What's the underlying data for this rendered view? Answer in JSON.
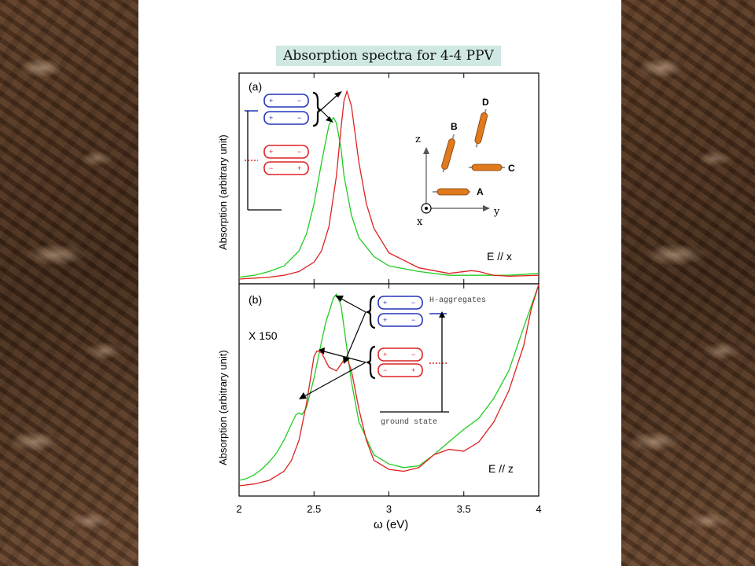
{
  "slide": {
    "title": "Absorption spectra for 4-4 PPV"
  },
  "chart_data": [
    {
      "type": "line",
      "panel_label": "(a)",
      "ylabel": "Absorption (arbitrary unit)",
      "field_label": "E // x",
      "xlim": [
        2,
        4
      ],
      "series": [
        {
          "color": "#22cc22",
          "x": [
            2.0,
            2.1,
            2.2,
            2.3,
            2.4,
            2.45,
            2.5,
            2.55,
            2.6,
            2.63,
            2.65,
            2.68,
            2.7,
            2.75,
            2.8,
            2.9,
            3.0,
            3.2,
            3.4,
            3.6,
            3.8,
            4.0
          ],
          "y": [
            0.01,
            0.02,
            0.04,
            0.07,
            0.15,
            0.24,
            0.4,
            0.62,
            0.82,
            0.86,
            0.83,
            0.7,
            0.55,
            0.34,
            0.22,
            0.12,
            0.07,
            0.04,
            0.02,
            0.02,
            0.02,
            0.03
          ]
        },
        {
          "color": "#dd2222",
          "x": [
            2.0,
            2.1,
            2.2,
            2.3,
            2.4,
            2.5,
            2.55,
            2.6,
            2.65,
            2.68,
            2.7,
            2.72,
            2.75,
            2.8,
            2.85,
            2.9,
            3.0,
            3.2,
            3.4,
            3.55,
            3.6,
            3.7,
            3.8,
            4.0
          ],
          "y": [
            0.0,
            0.005,
            0.01,
            0.02,
            0.04,
            0.09,
            0.15,
            0.28,
            0.55,
            0.8,
            0.95,
            1.0,
            0.92,
            0.62,
            0.4,
            0.27,
            0.14,
            0.06,
            0.03,
            0.045,
            0.04,
            0.02,
            0.015,
            0.02
          ]
        }
      ],
      "energy_diagram": {
        "plus": "+",
        "minus": "−"
      },
      "axes_labels": {
        "z": "z",
        "y": "y",
        "x": "x"
      },
      "molecules": {
        "a": "A",
        "b": "B",
        "c": "C",
        "d": "D"
      }
    },
    {
      "type": "line",
      "panel_label": "(b)",
      "ylabel": "Absorption (arbitrary unit)",
      "field_label": "E // z",
      "multiplier_label": "X 150",
      "xlabel": "ω (eV)",
      "xlim": [
        2,
        4
      ],
      "xticks": [
        "2",
        "2.5",
        "3",
        "3.5",
        "4"
      ],
      "series": [
        {
          "color": "#22cc22",
          "x": [
            2.0,
            2.05,
            2.1,
            2.15,
            2.2,
            2.25,
            2.3,
            2.35,
            2.38,
            2.4,
            2.42,
            2.45,
            2.5,
            2.55,
            2.58,
            2.6,
            2.63,
            2.65,
            2.68,
            2.7,
            2.75,
            2.8,
            2.9,
            3.0,
            3.1,
            3.2,
            3.3,
            3.4,
            3.5,
            3.6,
            3.7,
            3.8,
            3.9,
            4.0
          ],
          "y": [
            0.06,
            0.07,
            0.09,
            0.12,
            0.16,
            0.21,
            0.28,
            0.37,
            0.42,
            0.43,
            0.42,
            0.46,
            0.62,
            0.82,
            0.93,
            0.98,
            1.06,
            1.08,
            1.02,
            0.9,
            0.6,
            0.38,
            0.2,
            0.15,
            0.13,
            0.14,
            0.2,
            0.27,
            0.34,
            0.4,
            0.51,
            0.66,
            0.9,
            1.2
          ]
        },
        {
          "color": "#dd2222",
          "x": [
            2.0,
            2.1,
            2.2,
            2.3,
            2.35,
            2.4,
            2.45,
            2.5,
            2.52,
            2.55,
            2.6,
            2.65,
            2.7,
            2.72,
            2.75,
            2.8,
            2.85,
            2.9,
            3.0,
            3.1,
            3.2,
            3.3,
            3.4,
            3.5,
            3.6,
            3.7,
            3.8,
            3.9,
            3.95,
            4.0
          ],
          "y": [
            0.03,
            0.04,
            0.06,
            0.11,
            0.17,
            0.28,
            0.48,
            0.74,
            0.77,
            0.76,
            0.68,
            0.66,
            0.72,
            0.73,
            0.66,
            0.45,
            0.28,
            0.17,
            0.12,
            0.11,
            0.13,
            0.2,
            0.23,
            0.22,
            0.27,
            0.38,
            0.55,
            0.8,
            1.0,
            1.2
          ]
        }
      ],
      "energy_diagram": {
        "upper_label": "H-aggregates",
        "ground_label": "ground state",
        "plus": "+",
        "minus": "−"
      }
    }
  ]
}
